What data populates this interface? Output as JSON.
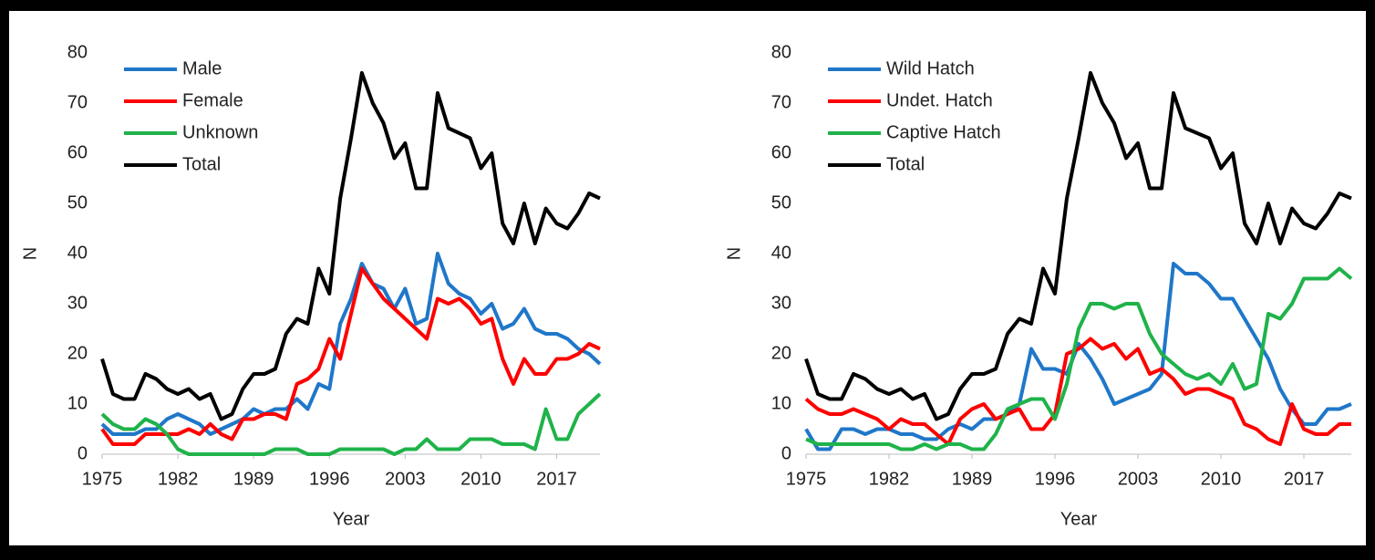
{
  "chart_data": [
    {
      "type": "line",
      "xlabel": "Year",
      "ylabel": "N",
      "x": [
        1975,
        1976,
        1977,
        1978,
        1979,
        1980,
        1981,
        1982,
        1983,
        1984,
        1985,
        1986,
        1987,
        1988,
        1989,
        1990,
        1991,
        1992,
        1993,
        1994,
        1995,
        1996,
        1997,
        1998,
        1999,
        2000,
        2001,
        2002,
        2003,
        2004,
        2005,
        2006,
        2007,
        2008,
        2009,
        2010,
        2011,
        2012,
        2013,
        2014,
        2015,
        2016,
        2017,
        2018,
        2019,
        2020,
        2021
      ],
      "xlim": [
        1975,
        2021
      ],
      "xticks": [
        1975,
        1982,
        1989,
        1996,
        2003,
        2010,
        2017
      ],
      "ylim": [
        0,
        80
      ],
      "yticks": [
        0,
        10,
        20,
        30,
        40,
        50,
        60,
        70,
        80
      ],
      "series": [
        {
          "name": "Male",
          "color": "#1f77c9",
          "values": [
            6,
            4,
            4,
            4,
            5,
            5,
            7,
            8,
            7,
            6,
            4,
            5,
            6,
            7,
            9,
            8,
            9,
            9,
            11,
            9,
            14,
            13,
            26,
            31,
            38,
            34,
            33,
            29,
            33,
            26,
            27,
            40,
            34,
            32,
            31,
            28,
            30,
            25,
            26,
            29,
            25,
            24,
            24,
            23,
            21,
            20,
            18
          ]
        },
        {
          "name": "Female",
          "color": "#ff0000",
          "values": [
            5,
            2,
            2,
            2,
            4,
            4,
            4,
            4,
            5,
            4,
            6,
            4,
            3,
            7,
            7,
            8,
            8,
            7,
            14,
            15,
            17,
            23,
            19,
            28,
            37,
            34,
            31,
            29,
            27,
            25,
            23,
            31,
            30,
            31,
            29,
            26,
            27,
            19,
            14,
            19,
            16,
            16,
            19,
            19,
            20,
            22,
            21
          ]
        },
        {
          "name": "Unknown",
          "color": "#1fb34a",
          "values": [
            8,
            6,
            5,
            5,
            7,
            6,
            4,
            1,
            0,
            0,
            0,
            0,
            0,
            0,
            0,
            0,
            1,
            1,
            1,
            0,
            0,
            0,
            1,
            1,
            1,
            1,
            1,
            0,
            1,
            1,
            3,
            1,
            1,
            1,
            3,
            3,
            3,
            2,
            2,
            2,
            1,
            9,
            3,
            3,
            8,
            10,
            12
          ]
        },
        {
          "name": "Total",
          "color": "#000000",
          "values": [
            19,
            12,
            11,
            11,
            16,
            15,
            13,
            12,
            13,
            11,
            12,
            7,
            8,
            13,
            16,
            16,
            17,
            24,
            27,
            26,
            37,
            32,
            51,
            63,
            76,
            70,
            66,
            59,
            62,
            53,
            53,
            72,
            65,
            64,
            63,
            57,
            60,
            46,
            42,
            50,
            42,
            49,
            46,
            45,
            48,
            52,
            51
          ]
        }
      ]
    },
    {
      "type": "line",
      "xlabel": "Year",
      "ylabel": "N",
      "x": [
        1975,
        1976,
        1977,
        1978,
        1979,
        1980,
        1981,
        1982,
        1983,
        1984,
        1985,
        1986,
        1987,
        1988,
        1989,
        1990,
        1991,
        1992,
        1993,
        1994,
        1995,
        1996,
        1997,
        1998,
        1999,
        2000,
        2001,
        2002,
        2003,
        2004,
        2005,
        2006,
        2007,
        2008,
        2009,
        2010,
        2011,
        2012,
        2013,
        2014,
        2015,
        2016,
        2017,
        2018,
        2019,
        2020,
        2021
      ],
      "xlim": [
        1975,
        2021
      ],
      "xticks": [
        1975,
        1982,
        1989,
        1996,
        2003,
        2010,
        2017
      ],
      "ylim": [
        0,
        80
      ],
      "yticks": [
        0,
        10,
        20,
        30,
        40,
        50,
        60,
        70,
        80
      ],
      "series": [
        {
          "name": "Wild Hatch",
          "color": "#1f77c9",
          "values": [
            5,
            1,
            1,
            5,
            5,
            4,
            5,
            5,
            4,
            4,
            3,
            3,
            5,
            6,
            5,
            7,
            7,
            8,
            10,
            21,
            17,
            17,
            16,
            22,
            19,
            15,
            10,
            11,
            12,
            13,
            16,
            38,
            36,
            36,
            34,
            31,
            31,
            27,
            23,
            19,
            13,
            9,
            6,
            6,
            9,
            9,
            10
          ]
        },
        {
          "name": "Undet. Hatch",
          "color": "#ff0000",
          "values": [
            11,
            9,
            8,
            8,
            9,
            8,
            7,
            5,
            7,
            6,
            6,
            4,
            2,
            7,
            9,
            10,
            7,
            8,
            9,
            5,
            5,
            8,
            20,
            21,
            23,
            21,
            22,
            19,
            21,
            16,
            17,
            15,
            12,
            13,
            13,
            12,
            11,
            6,
            5,
            3,
            2,
            10,
            5,
            4,
            4,
            6,
            6
          ]
        },
        {
          "name": "Captive Hatch",
          "color": "#1fb34a",
          "values": [
            3,
            2,
            2,
            2,
            2,
            2,
            2,
            2,
            1,
            1,
            2,
            1,
            2,
            2,
            1,
            1,
            4,
            9,
            10,
            11,
            11,
            7,
            14,
            25,
            30,
            30,
            29,
            30,
            30,
            24,
            20,
            18,
            16,
            15,
            16,
            14,
            18,
            13,
            14,
            28,
            27,
            30,
            35,
            35,
            35,
            37,
            35
          ]
        },
        {
          "name": "Total",
          "color": "#000000",
          "values": [
            19,
            12,
            11,
            11,
            16,
            15,
            13,
            12,
            13,
            11,
            12,
            7,
            8,
            13,
            16,
            16,
            17,
            24,
            27,
            26,
            37,
            32,
            51,
            63,
            76,
            70,
            66,
            59,
            62,
            53,
            53,
            72,
            65,
            64,
            63,
            57,
            60,
            46,
            42,
            50,
            42,
            49,
            46,
            45,
            48,
            52,
            51
          ]
        }
      ]
    }
  ]
}
